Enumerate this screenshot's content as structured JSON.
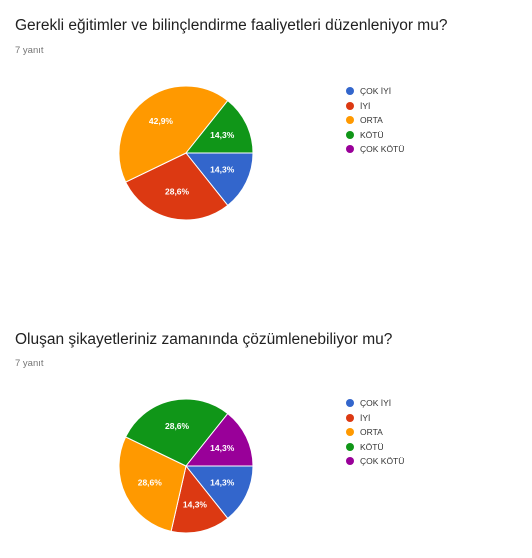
{
  "charts": [
    {
      "title": "Gerekli eğitimler ve bilinçlendirme faaliyetleri düzenleniyor mu?",
      "response_count": "7 yanıt"
    },
    {
      "title": "Oluşan şikayetleriniz zamanında çözümlenebiliyor mu?",
      "response_count": "7 yanıt"
    }
  ],
  "chart_data": [
    {
      "type": "pie",
      "title": "Gerekli eğitimler ve bilinçlendirme faaliyetleri düzenleniyor mu?",
      "categories": [
        "ÇOK İYİ",
        "İYİ",
        "ORTA",
        "KÖTÜ",
        "ÇOK KÖTÜ"
      ],
      "values": [
        14.3,
        28.6,
        42.9,
        14.3,
        0
      ],
      "labels": [
        "14,3%",
        "28,6%",
        "42,9%",
        "14,3%",
        ""
      ],
      "colors": [
        "#3366cc",
        "#dc3912",
        "#ff9900",
        "#109618",
        "#990099"
      ],
      "legend_position": "right"
    },
    {
      "type": "pie",
      "title": "Oluşan şikayetleriniz zamanında çözümlenebiliyor mu?",
      "categories": [
        "ÇOK İYİ",
        "İYİ",
        "ORTA",
        "KÖTÜ",
        "ÇOK KÖTÜ"
      ],
      "values": [
        14.3,
        14.3,
        28.6,
        28.6,
        14.3
      ],
      "labels": [
        "14,3%",
        "14,3%",
        "28,6%",
        "28,6%",
        "14,3%"
      ],
      "colors": [
        "#3366cc",
        "#dc3912",
        "#ff9900",
        "#109618",
        "#990099"
      ],
      "legend_position": "right"
    }
  ]
}
